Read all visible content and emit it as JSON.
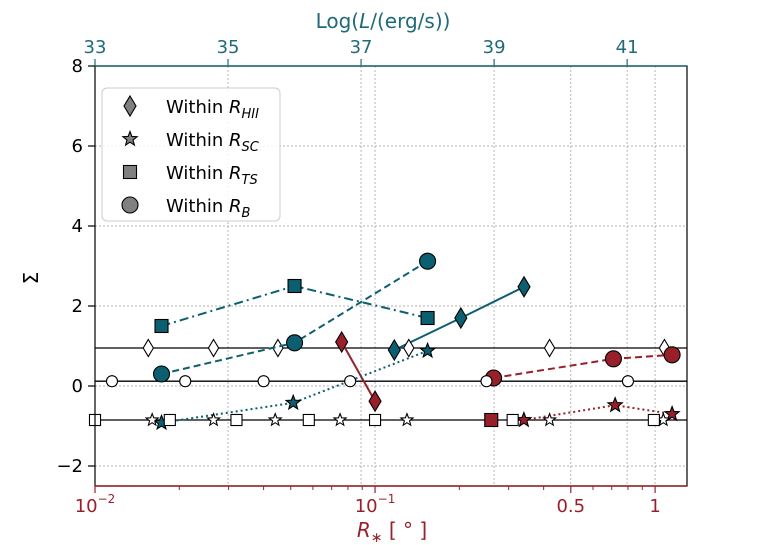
{
  "chart_data": {
    "type": "line",
    "title": "",
    "xlabel": "R* [°]",
    "ylabel": "Σ",
    "top_xlabel": "Log(L/(erg/s))",
    "x_scale": "log",
    "xlim": [
      0.01,
      1.3
    ],
    "ylim": [
      -2.5,
      8
    ],
    "top_xlim": [
      33,
      41.9
    ],
    "x_ticks": [
      {
        "value": 0.01,
        "label": "10",
        "sup": "−2"
      },
      {
        "value": 0.1,
        "label": "10",
        "sup": "−1"
      },
      {
        "value": 0.5,
        "label": "0.5",
        "sup": ""
      },
      {
        "value": 1.0,
        "label": "1",
        "sup": ""
      }
    ],
    "top_ticks": [
      {
        "value": 33,
        "label": "33"
      },
      {
        "value": 35,
        "label": "35"
      },
      {
        "value": 37,
        "label": "37"
      },
      {
        "value": 39,
        "label": "39"
      },
      {
        "value": 41,
        "label": "41"
      }
    ],
    "y_ticks": [
      {
        "value": -2,
        "label": "−2"
      },
      {
        "value": 0,
        "label": "0"
      },
      {
        "value": 2,
        "label": "2"
      },
      {
        "value": 4,
        "label": "4"
      },
      {
        "value": 6,
        "label": "6"
      },
      {
        "value": 8,
        "label": "8"
      }
    ],
    "reference_lines": [
      0.95,
      0.12,
      -0.85
    ],
    "legend": {
      "placement": "upper-left",
      "entries": [
        {
          "marker": "diamond",
          "label": "Within R",
          "sub": "HII"
        },
        {
          "marker": "star",
          "label": "Within R",
          "sub": "SC"
        },
        {
          "marker": "square",
          "label": "Within R",
          "sub": "TS"
        },
        {
          "marker": "circle",
          "label": "Within R",
          "sub": "B"
        }
      ]
    },
    "colors": {
      "teal": "#0b5f71",
      "red": "#98202a",
      "axis_top": "#1f6b78",
      "axis_bottom": "#98202a",
      "grey": "#808080"
    },
    "series": [
      {
        "name": "HII teal",
        "marker": "diamond",
        "style": "solid",
        "color": "teal",
        "axis": "top",
        "points": [
          [
            37.5,
            0.9
          ],
          [
            38.5,
            1.7
          ],
          [
            39.45,
            2.48
          ]
        ]
      },
      {
        "name": "HII red",
        "marker": "diamond",
        "style": "solid",
        "color": "red",
        "axis": "bottom",
        "points": [
          [
            0.076,
            1.1
          ],
          [
            0.1,
            -0.38
          ]
        ]
      },
      {
        "name": "HII open",
        "marker": "diamond",
        "style": "none",
        "color": "open",
        "axis": "bottom",
        "points": [
          [
            0.0155,
            0.95
          ],
          [
            0.0265,
            0.95
          ],
          [
            0.045,
            0.95
          ],
          [
            0.132,
            0.95
          ],
          [
            0.42,
            0.95
          ],
          [
            1.08,
            0.95
          ]
        ]
      },
      {
        "name": "SC teal",
        "marker": "star",
        "style": "dotted",
        "color": "teal",
        "axis": "top",
        "points": [
          [
            34.0,
            -0.92
          ],
          [
            35.98,
            -0.42
          ],
          [
            38.0,
            0.88
          ]
        ]
      },
      {
        "name": "SC red",
        "marker": "star",
        "style": "dotted",
        "color": "red",
        "axis": "bottom",
        "points": [
          [
            0.34,
            -0.85
          ],
          [
            0.72,
            -0.48
          ],
          [
            1.15,
            -0.7
          ]
        ]
      },
      {
        "name": "SC open",
        "marker": "star",
        "style": "none",
        "color": "open",
        "axis": "bottom",
        "points": [
          [
            0.016,
            -0.85
          ],
          [
            0.0265,
            -0.85
          ],
          [
            0.044,
            -0.85
          ],
          [
            0.075,
            -0.85
          ],
          [
            0.13,
            -0.85
          ],
          [
            0.42,
            -0.85
          ],
          [
            1.07,
            -0.85
          ]
        ]
      },
      {
        "name": "TS teal",
        "marker": "square",
        "style": "dashdot",
        "color": "teal",
        "axis": "top",
        "points": [
          [
            34.0,
            1.5
          ],
          [
            36.0,
            2.5
          ],
          [
            38.0,
            1.7
          ]
        ]
      },
      {
        "name": "TS red",
        "marker": "square",
        "style": "none",
        "color": "red",
        "axis": "bottom",
        "points": [
          [
            0.26,
            -0.85
          ]
        ]
      },
      {
        "name": "TS open",
        "marker": "square",
        "style": "none",
        "color": "open",
        "axis": "bottom",
        "points": [
          [
            0.01,
            -0.85
          ],
          [
            0.0185,
            -0.85
          ],
          [
            0.032,
            -0.85
          ],
          [
            0.058,
            -0.85
          ],
          [
            0.1,
            -0.85
          ],
          [
            0.31,
            -0.85
          ],
          [
            0.99,
            -0.85
          ]
        ]
      },
      {
        "name": "B teal",
        "marker": "circle",
        "style": "dashed",
        "color": "teal",
        "axis": "top",
        "points": [
          [
            34.0,
            0.3
          ],
          [
            36.0,
            1.08
          ],
          [
            38.0,
            3.12
          ]
        ]
      },
      {
        "name": "B red",
        "marker": "circle",
        "style": "dashed",
        "color": "red",
        "axis": "bottom",
        "points": [
          [
            0.265,
            0.2
          ],
          [
            0.71,
            0.68
          ],
          [
            1.15,
            0.78
          ]
        ]
      },
      {
        "name": "B open",
        "marker": "circle",
        "style": "none",
        "color": "open",
        "axis": "bottom",
        "points": [
          [
            0.0115,
            0.12
          ],
          [
            0.021,
            0.12
          ],
          [
            0.04,
            0.12
          ],
          [
            0.0815,
            0.12
          ],
          [
            0.25,
            0.12
          ],
          [
            0.8,
            0.12
          ]
        ]
      }
    ]
  }
}
